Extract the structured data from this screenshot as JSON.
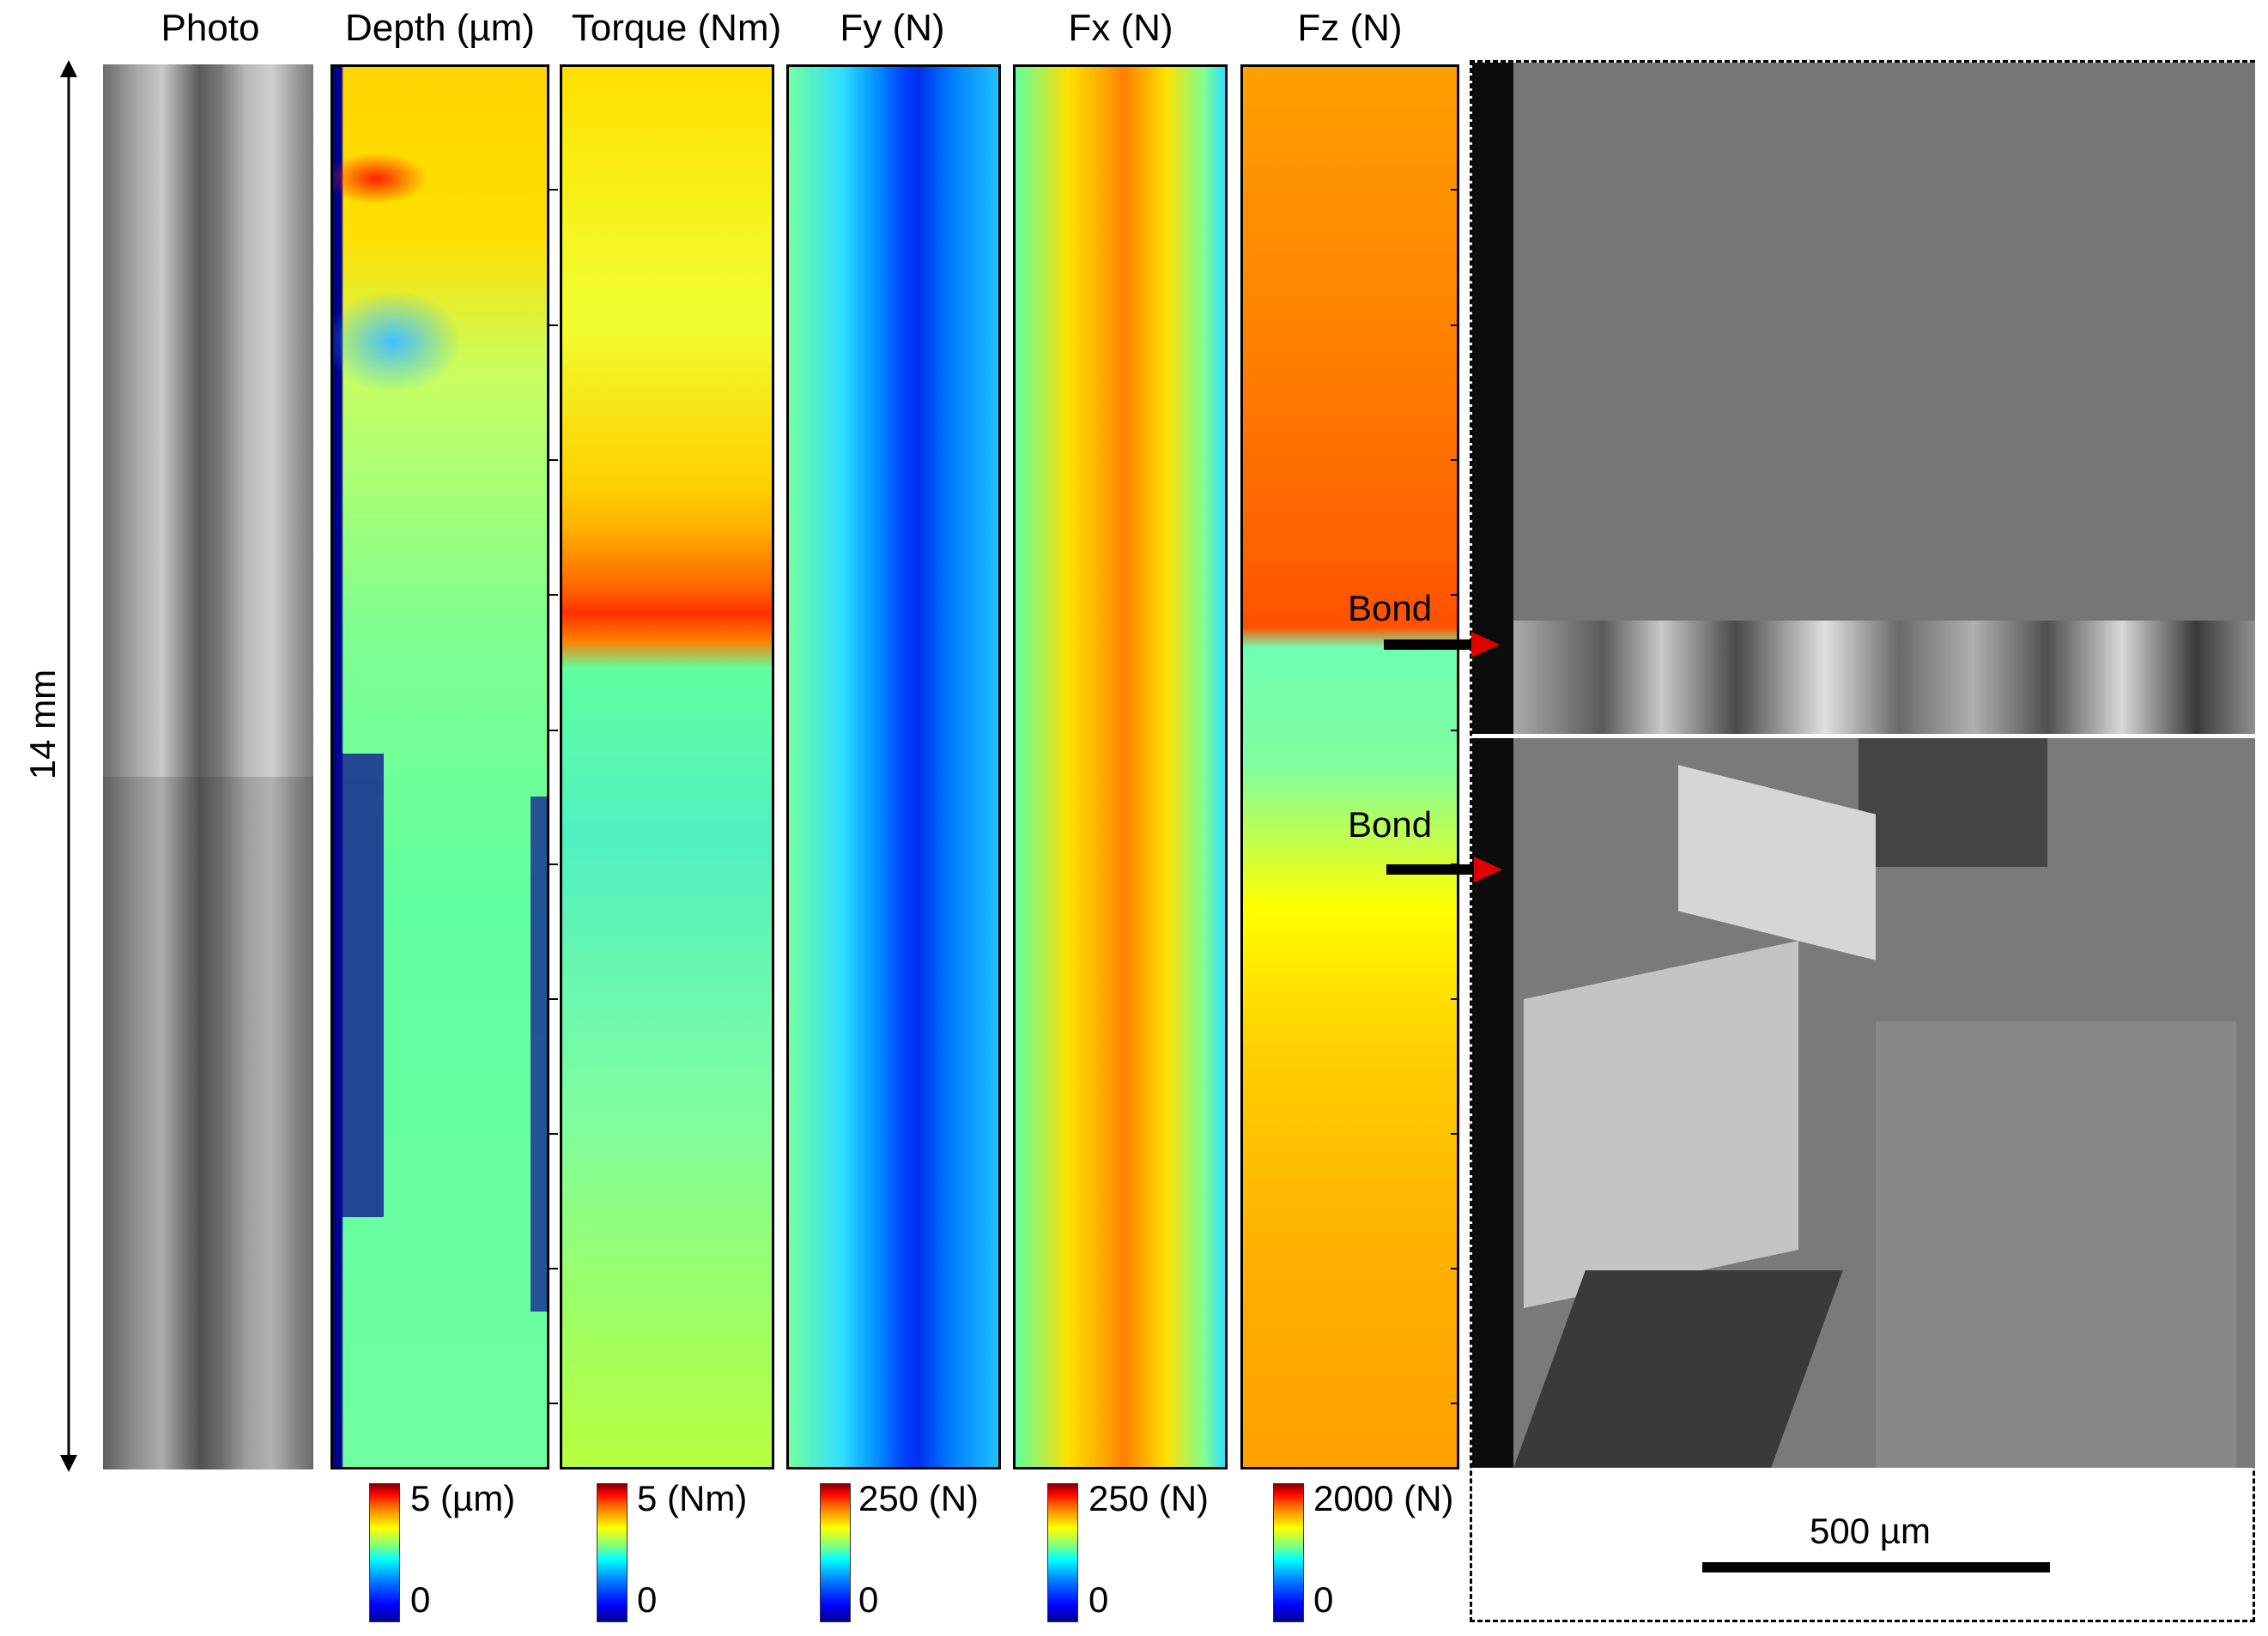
{
  "panels": {
    "photo": "Photo",
    "depth": "Depth (µm)",
    "torque": "Torque (Nm)",
    "fy": "Fy (N)",
    "fx": "Fx (N)",
    "fz": "Fz (N)"
  },
  "length_label": "14 mm",
  "colorbars": {
    "depth": {
      "max": "5 (µm)",
      "min": "0"
    },
    "torque": {
      "max": "5 (Nm)",
      "min": "0"
    },
    "fy": {
      "max": "250 (N)",
      "min": "0"
    },
    "fx": {
      "max": "250 (N)",
      "min": "0"
    },
    "fz": {
      "max": "2000 (N)",
      "min": "0"
    }
  },
  "annotations": {
    "bond_upper": "Bond",
    "bond_lower": "Bond"
  },
  "scale_bar": "500 µm",
  "colors": {
    "arrow": "#e00000",
    "colormap": "jet"
  }
}
